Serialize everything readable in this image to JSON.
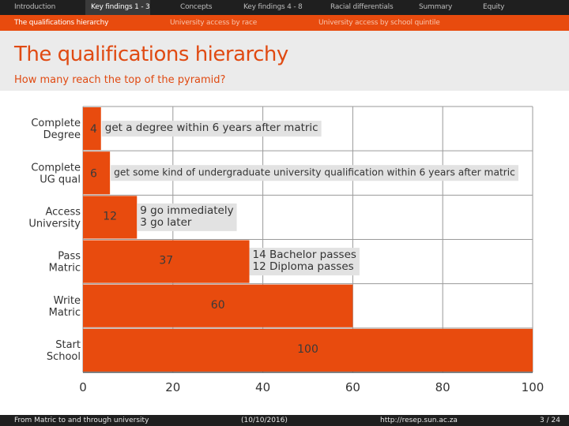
{
  "nav": {
    "items": [
      "Introduction",
      "Key findings 1 - 3",
      "Concepts",
      "Key findings 4 - 8",
      "Racial differentials",
      "Summary",
      "Equity"
    ],
    "active_index": 1
  },
  "subnav": {
    "items": [
      "The qualifications hierarchy",
      "University access by race",
      "University access by school quintile"
    ],
    "active_index": 0
  },
  "header": {
    "title": "The qualifications hierarchy",
    "subtitle": "How many reach the top of the pyramid?"
  },
  "footer": {
    "left": "From Matric to and through university",
    "center": "(10/10/2016)",
    "url": "http://resep.sun.ac.za",
    "page": "3 / 24"
  },
  "colors": {
    "accent": "#e84b0e",
    "nav_bg": "#1f1f1f",
    "title_bg": "#ebebeb",
    "annotation_bg": "#e2e2e2"
  },
  "chart_data": {
    "type": "bar",
    "orientation": "horizontal",
    "categories": [
      [
        "Complete",
        "Degree"
      ],
      [
        "Complete",
        "UG qual"
      ],
      [
        "Access",
        "University"
      ],
      [
        "Pass",
        "Matric"
      ],
      [
        "Write",
        "Matric"
      ],
      [
        "Start",
        "School"
      ]
    ],
    "values": [
      4,
      6,
      12,
      37,
      60,
      100
    ],
    "value_labels": [
      "4",
      "6",
      "12",
      "37",
      "60",
      "100"
    ],
    "annotations": [
      [
        "get a degree within 6 years after matric"
      ],
      [
        "get some kind of undergraduate university qualification within 6 years after matric"
      ],
      [
        "9 go immediately",
        "3 go later"
      ],
      [
        "14 Bachelor passes",
        "12 Diploma passes"
      ],
      [],
      []
    ],
    "xlim": [
      0,
      100
    ],
    "xticks": [
      0,
      20,
      40,
      60,
      80,
      100
    ],
    "grid": true
  }
}
